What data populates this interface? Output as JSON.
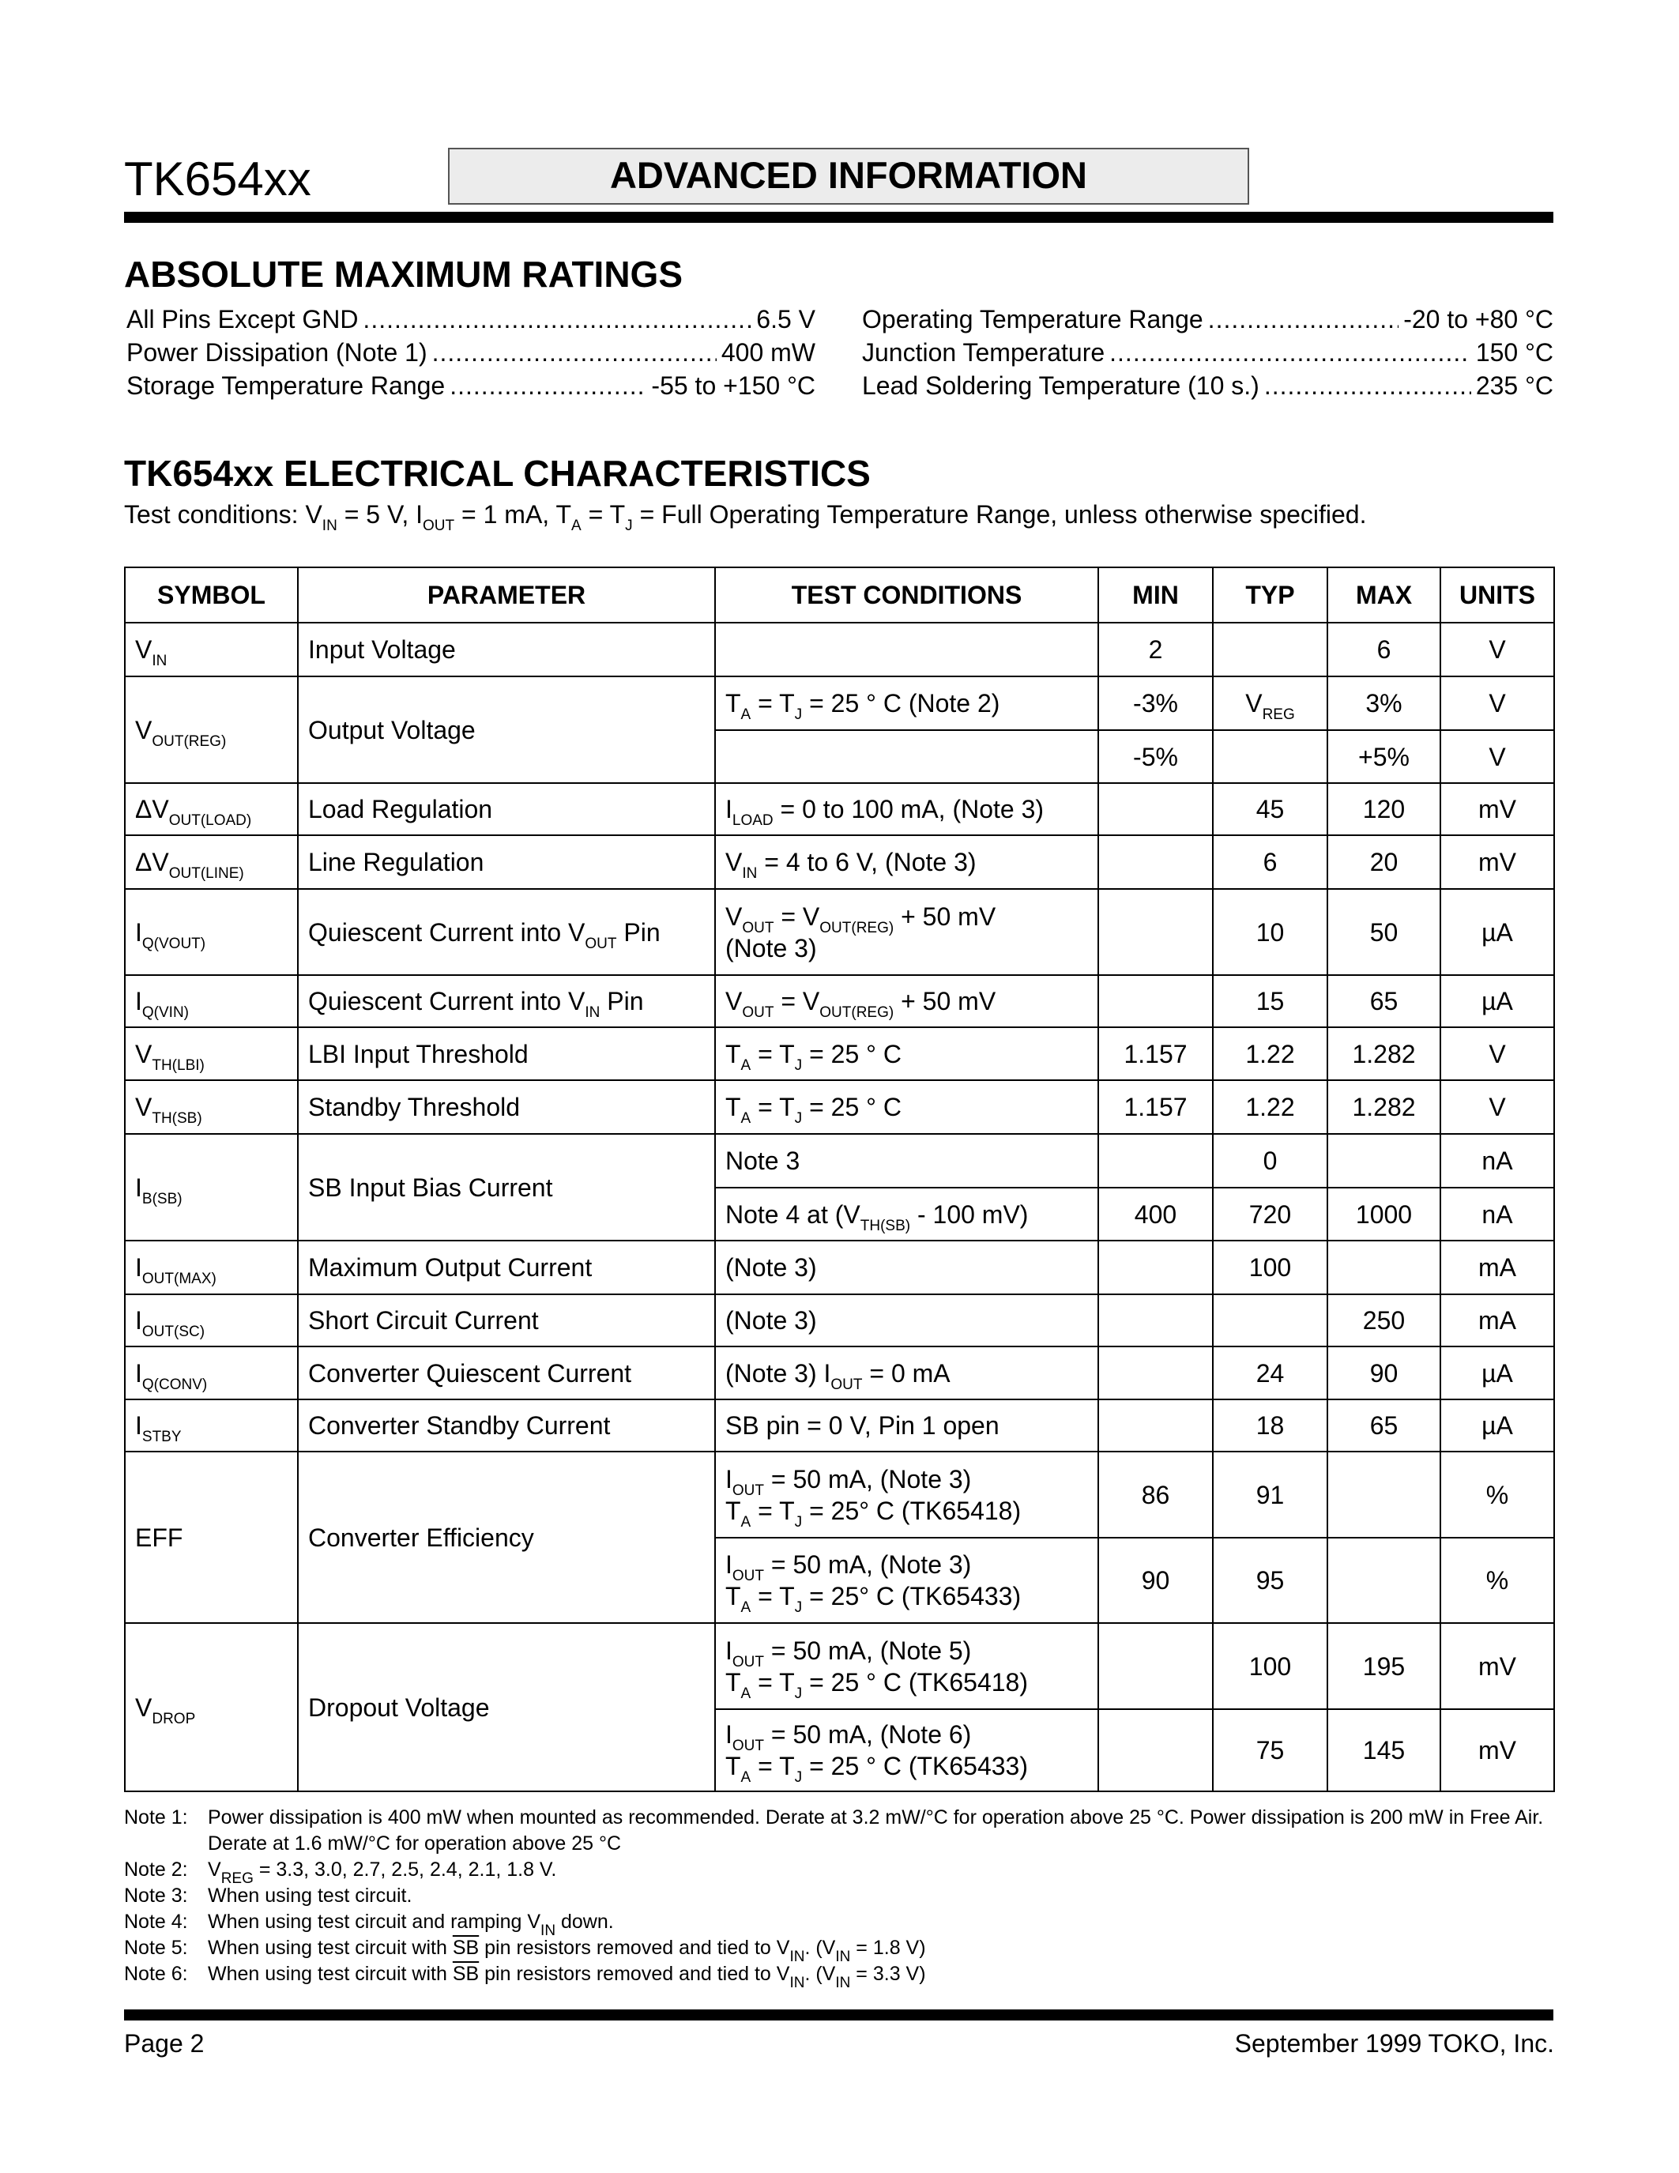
{
  "header": {
    "doc_id": "TK654xx",
    "banner": "ADVANCED INFORMATION"
  },
  "amr": {
    "title": "ABSOLUTE MAXIMUM RATINGS",
    "left": [
      {
        "label": "All Pins Except GND",
        "value": "6.5 V"
      },
      {
        "label": "Power Dissipation (Note 1)",
        "value": "400 mW"
      },
      {
        "label": "Storage Temperature Range",
        "value": "-55 to +150 °C"
      }
    ],
    "right": [
      {
        "label": "Operating Temperature Range",
        "value": "-20 to +80 °C"
      },
      {
        "label": "Junction Temperature",
        "value": "150 °C"
      },
      {
        "label": "Lead Soldering Temperature (10 s.)",
        "value": "235 °C"
      }
    ]
  },
  "ec": {
    "title": "TK654xx ELECTRICAL CHARACTERISTICS",
    "conditions": [
      "Test conditions: V",
      {
        "sub": "IN"
      },
      " = 5 V, I",
      {
        "sub": "OUT"
      },
      " = 1 mA, T",
      {
        "sub": "A"
      },
      " = T",
      {
        "sub": "J"
      },
      " = Full Operating Temperature Range, unless otherwise specified."
    ],
    "columns": [
      "SYMBOL",
      "PARAMETER",
      "TEST CONDITIONS",
      "MIN",
      "TYP",
      "MAX",
      "UNITS"
    ],
    "rows": [
      {
        "symbol": [
          "V",
          {
            "sub": "IN"
          }
        ],
        "parameter": "Input Voltage",
        "sub": [
          {
            "test": [],
            "min": "2",
            "typ": "",
            "max": "6",
            "units": "V"
          }
        ]
      },
      {
        "symbol": [
          "V",
          {
            "sub": "OUT(REG)"
          }
        ],
        "parameter": "Output Voltage",
        "sub": [
          {
            "test": [
              [
                "T",
                {
                  "sub": "A"
                },
                " = T",
                {
                  "sub": "J"
                },
                " = 25 ° C (Note 2)"
              ]
            ],
            "min": "-3%",
            "typ": [
              "V",
              {
                "sub": "REG"
              }
            ],
            "max": "3%",
            "units": "V"
          },
          {
            "test": [],
            "min": "-5%",
            "typ": "",
            "max": "+5%",
            "units": "V"
          }
        ]
      },
      {
        "symbol": [
          "ΔV",
          {
            "sub": "OUT(LOAD)"
          }
        ],
        "parameter": "Load Regulation",
        "sub": [
          {
            "test": [
              [
                "I",
                {
                  "sub": "LOAD"
                },
                " = 0 to 100 mA, (Note 3)"
              ]
            ],
            "min": "",
            "typ": "45",
            "max": "120",
            "units": "mV"
          }
        ]
      },
      {
        "symbol": [
          "ΔV",
          {
            "sub": "OUT(LINE)"
          }
        ],
        "parameter": "Line Regulation",
        "sub": [
          {
            "test": [
              [
                "V",
                {
                  "sub": "IN"
                },
                " = 4 to 6 V, (Note 3)"
              ]
            ],
            "min": "",
            "typ": "6",
            "max": "20",
            "units": "mV"
          }
        ]
      },
      {
        "symbol": [
          "I",
          {
            "sub": "Q(VOUT)"
          }
        ],
        "parameter": [
          "Quiescent Current into V",
          {
            "sub": "OUT"
          },
          " Pin"
        ],
        "sub": [
          {
            "test": [
              [
                "V",
                {
                  "sub": "OUT"
                },
                " = V",
                {
                  "sub": "OUT(REG)"
                },
                " + 50 mV"
              ],
              [
                "(Note 3)"
              ]
            ],
            "min": "",
            "typ": "10",
            "max": "50",
            "units": "µA"
          }
        ]
      },
      {
        "symbol": [
          "I",
          {
            "sub": "Q(VIN)"
          }
        ],
        "parameter": [
          "Quiescent Current into V",
          {
            "sub": "IN"
          },
          " Pin"
        ],
        "sub": [
          {
            "test": [
              [
                "V",
                {
                  "sub": "OUT"
                },
                " = V",
                {
                  "sub": "OUT(REG)"
                },
                " + 50 mV"
              ]
            ],
            "min": "",
            "typ": "15",
            "max": "65",
            "units": "µA"
          }
        ]
      },
      {
        "symbol": [
          "V",
          {
            "sub": "TH(LBI)"
          }
        ],
        "parameter": "LBI Input Threshold",
        "sub": [
          {
            "test": [
              [
                "T",
                {
                  "sub": "A"
                },
                " = T",
                {
                  "sub": "J"
                },
                " = 25 ° C"
              ]
            ],
            "min": "1.157",
            "typ": "1.22",
            "max": "1.282",
            "units": "V"
          }
        ]
      },
      {
        "symbol": [
          "V",
          {
            "sub": "TH(SB)"
          }
        ],
        "parameter": "Standby Threshold",
        "sub": [
          {
            "test": [
              [
                "T",
                {
                  "sub": "A"
                },
                " = T",
                {
                  "sub": "J"
                },
                " = 25 ° C"
              ]
            ],
            "min": "1.157",
            "typ": "1.22",
            "max": "1.282",
            "units": "V"
          }
        ]
      },
      {
        "symbol": [
          "I",
          {
            "sub": "B(SB)"
          }
        ],
        "parameter": "SB Input Bias Current",
        "sub": [
          {
            "test": [
              [
                "Note 3"
              ]
            ],
            "min": "",
            "typ": "0",
            "max": "",
            "units": "nA"
          },
          {
            "test": [
              [
                "Note 4 at (V",
                {
                  "sub": "TH(SB)"
                },
                " - 100 mV)"
              ]
            ],
            "min": "400",
            "typ": "720",
            "max": "1000",
            "units": "nA"
          }
        ]
      },
      {
        "symbol": [
          "I",
          {
            "sub": "OUT(MAX)"
          }
        ],
        "parameter": "Maximum Output Current",
        "sub": [
          {
            "test": [
              [
                "(Note 3)"
              ]
            ],
            "min": "",
            "typ": "100",
            "max": "",
            "units": "mA"
          }
        ]
      },
      {
        "symbol": [
          "I",
          {
            "sub": "OUT(SC)"
          }
        ],
        "parameter": "Short Circuit Current",
        "sub": [
          {
            "test": [
              [
                "(Note 3)"
              ]
            ],
            "min": "",
            "typ": "",
            "max": "250",
            "units": "mA"
          }
        ]
      },
      {
        "symbol": [
          "I",
          {
            "sub": "Q(CONV)"
          }
        ],
        "parameter": "Converter Quiescent Current",
        "sub": [
          {
            "test": [
              [
                "(Note 3) I",
                {
                  "sub": "OUT"
                },
                " = 0 mA"
              ]
            ],
            "min": "",
            "typ": "24",
            "max": "90",
            "units": "µA"
          }
        ]
      },
      {
        "symbol": [
          "I",
          {
            "sub": "STBY"
          }
        ],
        "parameter": "Converter Standby Current",
        "sub": [
          {
            "test": [
              [
                "SB pin = 0 V, Pin 1 open"
              ]
            ],
            "min": "",
            "typ": "18",
            "max": "65",
            "units": "µA"
          }
        ]
      },
      {
        "symbol": "EFF",
        "parameter": "Converter Efficiency",
        "sub": [
          {
            "test": [
              [
                "I",
                {
                  "sub": "OUT"
                },
                " = 50 mA, (Note 3)"
              ],
              [
                "T",
                {
                  "sub": "A"
                },
                " = T",
                {
                  "sub": "J"
                },
                " = 25° C (TK65418)"
              ]
            ],
            "min": "86",
            "typ": "91",
            "max": "",
            "units": "%"
          },
          {
            "test": [
              [
                "I",
                {
                  "sub": "OUT"
                },
                " = 50 mA, (Note 3)"
              ],
              [
                "T",
                {
                  "sub": "A"
                },
                " = T",
                {
                  "sub": "J"
                },
                " = 25° C (TK65433)"
              ]
            ],
            "min": "90",
            "typ": "95",
            "max": "",
            "units": "%"
          }
        ]
      },
      {
        "symbol": [
          "V",
          {
            "sub": "DROP"
          }
        ],
        "parameter": "Dropout Voltage",
        "sub": [
          {
            "test": [
              [
                "I",
                {
                  "sub": "OUT"
                },
                " = 50 mA, (Note 5)"
              ],
              [
                "T",
                {
                  "sub": "A"
                },
                " = T",
                {
                  "sub": "J"
                },
                " = 25 ° C    (TK65418)"
              ]
            ],
            "min": "",
            "typ": "100",
            "max": "195",
            "units": "mV"
          },
          {
            "test": [
              [
                "I",
                {
                  "sub": "OUT"
                },
                " = 50 mA, (Note 6)"
              ],
              [
                "T",
                {
                  "sub": "A"
                },
                " = T",
                {
                  "sub": "J"
                },
                " = 25 ° C    (TK65433)"
              ]
            ],
            "min": "",
            "typ": "75",
            "max": "145",
            "units": "mV"
          }
        ]
      }
    ]
  },
  "notes": [
    {
      "label": "Note 1:",
      "text": [
        "Power dissipation is 400 mW when mounted as recommended.  Derate at 3.2 mW/°C for operation above 25 °C.  Power dissipation is 200 mW in Free Air.  Derate at 1.6 mW/°C for operation above 25 °C"
      ]
    },
    {
      "label": "Note 2:",
      "text": [
        "V",
        {
          "sub": "REG"
        },
        " = 3.3, 3.0, 2.7, 2.5, 2.4, 2.1, 1.8 V."
      ]
    },
    {
      "label": "Note 3:",
      "text": [
        "When using test circuit."
      ]
    },
    {
      "label": "Note 4:",
      "text": [
        "When using test circuit and ramping V",
        {
          "sub": "IN"
        },
        " down."
      ]
    },
    {
      "label": "Note 5:",
      "text": [
        "When using test circuit with ",
        {
          "over": "SB"
        },
        " pin resistors removed and tied to V",
        {
          "sub": "IN"
        },
        ". (V",
        {
          "sub": "IN"
        },
        " = 1.8 V)"
      ]
    },
    {
      "label": "Note 6:",
      "text": [
        "When using test circuit with ",
        {
          "over": "SB"
        },
        " pin resistors removed and tied to V",
        {
          "sub": "IN"
        },
        ". (V",
        {
          "sub": "IN"
        },
        " = 3.3 V)"
      ]
    }
  ],
  "footer": {
    "page": "Page 2",
    "date_company": "September 1999 TOKO, Inc."
  }
}
